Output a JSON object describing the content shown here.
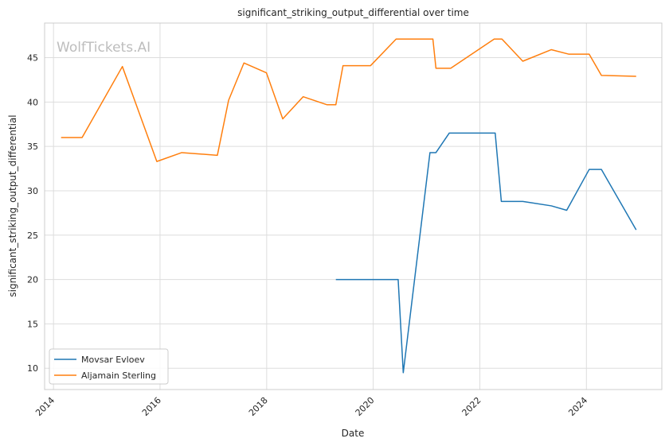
{
  "chart_data": {
    "type": "line",
    "title": "significant_striking_output_differential over time",
    "xlabel": "Date",
    "ylabel": "significant_striking_output_differential",
    "watermark": "WolfTickets.AI",
    "x_ticks": [
      "2014",
      "2016",
      "2018",
      "2020",
      "2022",
      "2024"
    ],
    "y_ticks": [
      "10",
      "15",
      "20",
      "25",
      "30",
      "35",
      "40",
      "45"
    ],
    "xlim": [
      "2013-11-01",
      "2025-06-01"
    ],
    "ylim": [
      7.6,
      48.9
    ],
    "grid": true,
    "legend_position": "lower-left",
    "colors": {
      "Movsar Evloev": "#1f77b4",
      "Aljamain Sterling": "#ff7f0e"
    },
    "series": [
      {
        "name": "Movsar Evloev",
        "color": "#1f77b4",
        "points": [
          [
            "2019-04-20",
            20.0
          ],
          [
            "2020-06-20",
            20.0
          ],
          [
            "2020-07-25",
            9.5
          ],
          [
            "2021-01-24",
            34.3
          ],
          [
            "2021-03-06",
            34.3
          ],
          [
            "2021-06-05",
            36.5
          ],
          [
            "2022-04-16",
            36.5
          ],
          [
            "2022-05-28",
            28.8
          ],
          [
            "2022-10-22",
            28.8
          ],
          [
            "2023-05-06",
            28.3
          ],
          [
            "2023-08-19",
            27.8
          ],
          [
            "2024-01-20",
            32.4
          ],
          [
            "2024-04-13",
            32.4
          ],
          [
            "2024-12-07",
            25.6
          ]
        ]
      },
      {
        "name": "Aljamain Sterling",
        "color": "#ff7f0e",
        "points": [
          [
            "2014-02-22",
            36.0
          ],
          [
            "2014-07-16",
            36.0
          ],
          [
            "2015-04-18",
            44.0
          ],
          [
            "2015-12-10",
            33.3
          ],
          [
            "2016-05-29",
            34.3
          ],
          [
            "2017-01-28",
            34.0
          ],
          [
            "2017-04-15",
            40.2
          ],
          [
            "2017-07-29",
            44.4
          ],
          [
            "2017-12-30",
            43.3
          ],
          [
            "2018-04-21",
            38.1
          ],
          [
            "2018-09-08",
            40.6
          ],
          [
            "2019-02-17",
            39.7
          ],
          [
            "2019-04-20",
            39.7
          ],
          [
            "2019-06-08",
            44.1
          ],
          [
            "2019-12-14",
            44.1
          ],
          [
            "2020-06-06",
            47.1
          ],
          [
            "2021-02-13",
            47.1
          ],
          [
            "2021-03-06",
            43.8
          ],
          [
            "2021-06-15",
            43.8
          ],
          [
            "2022-04-09",
            47.1
          ],
          [
            "2022-06-01",
            47.1
          ],
          [
            "2022-10-22",
            44.6
          ],
          [
            "2023-05-06",
            45.9
          ],
          [
            "2023-09-01",
            45.4
          ],
          [
            "2024-01-20",
            45.4
          ],
          [
            "2024-04-13",
            43.0
          ],
          [
            "2024-12-07",
            42.9
          ]
        ]
      }
    ]
  }
}
